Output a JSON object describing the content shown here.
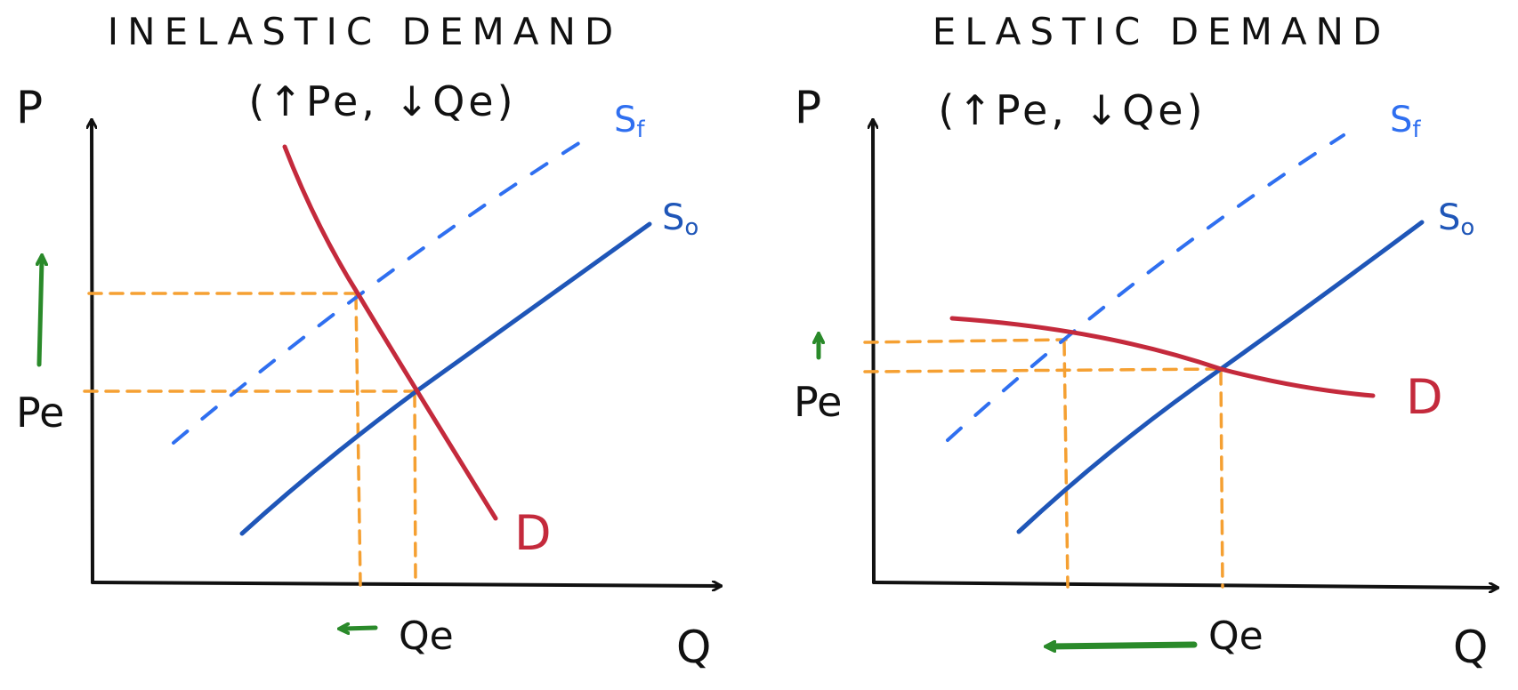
{
  "colors": {
    "ink": "#111111",
    "supply_original": "#1f56b8",
    "supply_shifted": "#2f6ff0",
    "demand": "#c42a3c",
    "guide": "#f5a032",
    "arrow": "#2a8a2a"
  },
  "panels": [
    {
      "title": "INELASTIC DEMAND",
      "subtitle": "(↑Pe, ↓Qe)",
      "axis_p": "P",
      "axis_q": "Q",
      "price_label": "Pe",
      "qty_label": "Qe",
      "supply_original_label": "S",
      "supply_original_sub": "o",
      "supply_shifted_label": "S",
      "supply_shifted_sub": "f",
      "demand_label": "D"
    },
    {
      "title": "ELASTIC DEMAND",
      "subtitle": "(↑Pe, ↓Qe)",
      "axis_p": "P",
      "axis_q": "Q",
      "price_label": "Pe",
      "qty_label": "Qe",
      "supply_original_label": "S",
      "supply_original_sub": "o",
      "supply_shifted_label": "S",
      "supply_shifted_sub": "f",
      "demand_label": "D"
    }
  ]
}
